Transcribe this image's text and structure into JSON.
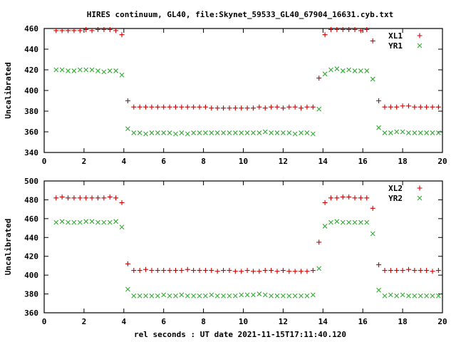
{
  "title": "HIRES continuum, GL40, file:Skynet_59533_GL40_67904_16631.cyb.txt",
  "xlabel": "rel seconds : UT date 2021-11-15T17:11:40.120",
  "colors": {
    "series_x": "#cc0000",
    "series_y": "#33aa33"
  },
  "chart_data": [
    {
      "type": "scatter",
      "ylabel": "Uncalibrated",
      "xlim": [
        0,
        20
      ],
      "ylim": [
        340,
        460
      ],
      "xticks": [
        0,
        2,
        4,
        6,
        8,
        10,
        12,
        14,
        16,
        18,
        20
      ],
      "yticks": [
        340,
        360,
        380,
        400,
        420,
        440,
        460
      ],
      "legend_position": "top-right",
      "x": [
        0.6,
        0.9,
        1.2,
        1.5,
        1.8,
        2.1,
        2.4,
        2.7,
        3.0,
        3.3,
        3.6,
        3.9,
        4.2,
        4.5,
        4.8,
        5.1,
        5.4,
        5.7,
        6.0,
        6.3,
        6.6,
        6.9,
        7.2,
        7.5,
        7.8,
        8.1,
        8.4,
        8.7,
        9.0,
        9.3,
        9.6,
        9.9,
        10.2,
        10.5,
        10.8,
        11.1,
        11.4,
        11.7,
        12.0,
        12.3,
        12.6,
        12.9,
        13.2,
        13.5,
        13.8,
        14.1,
        14.4,
        14.7,
        15.0,
        15.3,
        15.6,
        15.9,
        16.2,
        16.5,
        16.8,
        17.1,
        17.4,
        17.7,
        18.0,
        18.3,
        18.6,
        18.9,
        19.2,
        19.5,
        19.8
      ],
      "series": [
        {
          "name": "XL1",
          "marker": "plus",
          "values": [
            458,
            458,
            458,
            458,
            458,
            459,
            458,
            459,
            459,
            459,
            458,
            454,
            390,
            384,
            384,
            384,
            384,
            384,
            384,
            384,
            384,
            384,
            384,
            384,
            384,
            384,
            383,
            383,
            383,
            383,
            383,
            383,
            383,
            383,
            384,
            383,
            384,
            384,
            383,
            384,
            384,
            383,
            384,
            384,
            412,
            454,
            459,
            459,
            459,
            459,
            459,
            458,
            459,
            448,
            390,
            384,
            384,
            384,
            385,
            385,
            384,
            384,
            384,
            384,
            384
          ]
        },
        {
          "name": "YR1",
          "marker": "cross",
          "values": [
            420,
            420,
            419,
            419,
            420,
            420,
            420,
            419,
            418,
            419,
            419,
            415,
            363,
            359,
            359,
            358,
            359,
            359,
            359,
            359,
            358,
            359,
            358,
            359,
            359,
            359,
            359,
            359,
            359,
            359,
            359,
            359,
            359,
            359,
            359,
            360,
            359,
            359,
            359,
            359,
            358,
            359,
            359,
            358,
            382,
            416,
            420,
            421,
            419,
            420,
            419,
            419,
            419,
            411,
            364,
            359,
            359,
            360,
            360,
            359,
            359,
            359,
            359,
            359,
            359
          ]
        }
      ]
    },
    {
      "type": "scatter",
      "ylabel": "Uncalibrated",
      "xlim": [
        0,
        20
      ],
      "ylim": [
        360,
        500
      ],
      "xticks": [
        0,
        2,
        4,
        6,
        8,
        10,
        12,
        14,
        16,
        18,
        20
      ],
      "yticks": [
        360,
        380,
        400,
        420,
        440,
        460,
        480,
        500
      ],
      "legend_position": "top-right",
      "x": [
        0.6,
        0.9,
        1.2,
        1.5,
        1.8,
        2.1,
        2.4,
        2.7,
        3.0,
        3.3,
        3.6,
        3.9,
        4.2,
        4.5,
        4.8,
        5.1,
        5.4,
        5.7,
        6.0,
        6.3,
        6.6,
        6.9,
        7.2,
        7.5,
        7.8,
        8.1,
        8.4,
        8.7,
        9.0,
        9.3,
        9.6,
        9.9,
        10.2,
        10.5,
        10.8,
        11.1,
        11.4,
        11.7,
        12.0,
        12.3,
        12.6,
        12.9,
        13.2,
        13.5,
        13.8,
        14.1,
        14.4,
        14.7,
        15.0,
        15.3,
        15.6,
        15.9,
        16.2,
        16.5,
        16.8,
        17.1,
        17.4,
        17.7,
        18.0,
        18.3,
        18.6,
        18.9,
        19.2,
        19.5,
        19.8
      ],
      "series": [
        {
          "name": "XL2",
          "marker": "plus",
          "values": [
            482,
            483,
            482,
            482,
            482,
            482,
            482,
            482,
            482,
            483,
            482,
            477,
            412,
            405,
            405,
            406,
            405,
            405,
            405,
            405,
            405,
            405,
            406,
            405,
            405,
            405,
            405,
            404,
            405,
            405,
            404,
            404,
            405,
            404,
            404,
            405,
            405,
            404,
            405,
            404,
            404,
            404,
            404,
            405,
            435,
            477,
            482,
            482,
            483,
            483,
            482,
            482,
            482,
            471,
            411,
            405,
            405,
            405,
            405,
            406,
            405,
            405,
            405,
            404,
            405
          ]
        },
        {
          "name": "YR2",
          "marker": "cross",
          "values": [
            456,
            457,
            456,
            456,
            456,
            457,
            457,
            456,
            456,
            456,
            457,
            451,
            385,
            378,
            378,
            378,
            378,
            378,
            379,
            378,
            378,
            379,
            378,
            378,
            378,
            378,
            379,
            378,
            378,
            378,
            378,
            379,
            379,
            379,
            380,
            379,
            378,
            378,
            378,
            378,
            378,
            378,
            378,
            379,
            407,
            452,
            456,
            457,
            456,
            456,
            456,
            456,
            456,
            444,
            384,
            378,
            379,
            378,
            379,
            378,
            378,
            378,
            378,
            378,
            378
          ]
        }
      ]
    }
  ]
}
